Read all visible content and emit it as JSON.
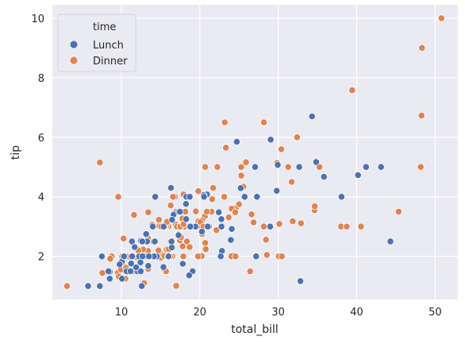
{
  "chart_data": {
    "type": "scatter",
    "title": "",
    "xlabel": "total_bill",
    "ylabel": "tip",
    "xlim": [
      1.2,
      52.9
    ],
    "ylim": [
      0.55,
      10.45
    ],
    "x_ticks": [
      10,
      20,
      30,
      40,
      50
    ],
    "y_ticks": [
      2,
      4,
      6,
      8,
      10
    ],
    "grid": true,
    "legend": {
      "title": "time",
      "position": "top-left"
    },
    "series": [
      {
        "name": "Lunch",
        "color": "#4c72b0",
        "points": [
          [
            27.2,
            4.0
          ],
          [
            22.76,
            3.0
          ],
          [
            17.29,
            2.71
          ],
          [
            19.44,
            3.0
          ],
          [
            16.66,
            3.4
          ],
          [
            10.07,
            1.83
          ],
          [
            32.68,
            5.0
          ],
          [
            15.98,
            2.03
          ],
          [
            34.83,
            5.17
          ],
          [
            13.03,
            2.0
          ],
          [
            18.28,
            4.0
          ],
          [
            24.71,
            5.85
          ],
          [
            21.16,
            3.0
          ],
          [
            28.97,
            3.0
          ],
          [
            22.49,
            3.5
          ],
          [
            5.75,
            1.0
          ],
          [
            16.32,
            4.3
          ],
          [
            22.75,
            3.25
          ],
          [
            40.17,
            4.73
          ],
          [
            27.28,
            4.0
          ],
          [
            12.03,
            1.5
          ],
          [
            21.01,
            3.0
          ],
          [
            12.46,
            1.5
          ],
          [
            11.35,
            2.5
          ],
          [
            15.38,
            3.0
          ],
          [
            44.3,
            2.5
          ],
          [
            22.42,
            3.48
          ],
          [
            20.92,
            4.08
          ],
          [
            15.36,
            1.64
          ],
          [
            20.49,
            4.06
          ],
          [
            25.21,
            4.29
          ],
          [
            18.24,
            3.76
          ],
          [
            14.31,
            4.0
          ],
          [
            14.0,
            3.0
          ],
          [
            7.25,
            1.0
          ],
          [
            38.07,
            4.0
          ],
          [
            23.95,
            2.55
          ],
          [
            25.71,
            4.0
          ],
          [
            17.31,
            3.5
          ],
          [
            29.93,
            5.07
          ],
          [
            10.65,
            1.5
          ],
          [
            12.43,
            1.8
          ],
          [
            24.08,
            2.92
          ],
          [
            11.69,
            2.31
          ],
          [
            13.42,
            1.68
          ],
          [
            14.26,
            2.5
          ],
          [
            15.95,
            2.0
          ],
          [
            12.48,
            2.52
          ],
          [
            29.8,
            4.2
          ],
          [
            8.52,
            1.48
          ],
          [
            14.52,
            2.0
          ],
          [
            11.38,
            2.0
          ],
          [
            22.82,
            2.18
          ],
          [
            19.08,
            1.5
          ],
          [
            20.27,
            2.83
          ],
          [
            11.17,
            1.5
          ],
          [
            12.26,
            2.0
          ],
          [
            18.26,
            3.25
          ],
          [
            8.51,
            1.25
          ],
          [
            10.33,
            2.0
          ],
          [
            14.15,
            2.0
          ],
          [
            16.0,
            2.0
          ],
          [
            13.16,
            2.75
          ],
          [
            17.47,
            3.5
          ],
          [
            34.3,
            6.7
          ],
          [
            41.19,
            5.0
          ],
          [
            27.05,
            5.0
          ],
          [
            16.43,
            2.3
          ],
          [
            8.35,
            1.5
          ],
          [
            18.64,
            1.36
          ],
          [
            11.87,
            1.63
          ],
          [
            9.78,
            1.73
          ],
          [
            7.51,
            2.0
          ],
          [
            13.0,
            2.0
          ],
          [
            16.4,
            2.5
          ],
          [
            20.53,
            4.0
          ],
          [
            16.47,
            3.23
          ],
          [
            10.07,
            1.25
          ],
          [
            12.6,
            1.0
          ],
          [
            32.83,
            1.17
          ],
          [
            35.83,
            4.67
          ],
          [
            29.03,
            5.92
          ],
          [
            27.18,
            2.0
          ],
          [
            22.67,
            2.0
          ],
          [
            17.82,
            1.75
          ],
          [
            18.78,
            3.0
          ],
          [
            12.74,
            2.01
          ],
          [
            13.0,
            2.0
          ],
          [
            10.34,
            2.0
          ],
          [
            43.11,
            5.0
          ],
          [
            13.51,
            2.0
          ],
          [
            18.71,
            4.0
          ],
          [
            13.27,
            2.5
          ],
          [
            12.69,
            2.0
          ],
          [
            11.24,
            1.76
          ],
          [
            12.66,
            2.5
          ]
        ]
      },
      {
        "name": "Dinner",
        "color": "#dd8452",
        "points": [
          [
            16.99,
            1.01
          ],
          [
            10.34,
            1.66
          ],
          [
            21.01,
            3.5
          ],
          [
            23.68,
            3.31
          ],
          [
            24.59,
            3.61
          ],
          [
            25.29,
            4.71
          ],
          [
            8.77,
            2.0
          ],
          [
            26.88,
            3.12
          ],
          [
            15.04,
            1.96
          ],
          [
            14.78,
            3.23
          ],
          [
            10.27,
            1.71
          ],
          [
            35.26,
            5.0
          ],
          [
            15.42,
            1.57
          ],
          [
            18.43,
            3.0
          ],
          [
            14.83,
            3.02
          ],
          [
            21.58,
            3.92
          ],
          [
            10.33,
            1.67
          ],
          [
            16.29,
            3.71
          ],
          [
            16.97,
            3.5
          ],
          [
            20.65,
            3.35
          ],
          [
            17.92,
            4.08
          ],
          [
            20.29,
            2.75
          ],
          [
            15.77,
            2.23
          ],
          [
            39.42,
            7.58
          ],
          [
            19.82,
            3.18
          ],
          [
            17.81,
            2.34
          ],
          [
            13.37,
            2.0
          ],
          [
            12.69,
            2.0
          ],
          [
            21.7,
            4.3
          ],
          [
            19.65,
            3.0
          ],
          [
            9.55,
            1.45
          ],
          [
            18.35,
            2.5
          ],
          [
            15.06,
            3.0
          ],
          [
            20.69,
            2.45
          ],
          [
            17.78,
            3.27
          ],
          [
            24.06,
            3.6
          ],
          [
            16.31,
            2.0
          ],
          [
            16.93,
            3.07
          ],
          [
            18.69,
            2.31
          ],
          [
            31.27,
            5.0
          ],
          [
            16.04,
            2.24
          ],
          [
            17.46,
            2.54
          ],
          [
            13.94,
            3.06
          ],
          [
            9.68,
            1.32
          ],
          [
            30.4,
            5.6
          ],
          [
            18.29,
            3.0
          ],
          [
            22.23,
            5.0
          ],
          [
            32.4,
            6.0
          ],
          [
            28.55,
            2.05
          ],
          [
            18.04,
            3.0
          ],
          [
            12.54,
            2.5
          ],
          [
            10.29,
            2.6
          ],
          [
            34.81,
            5.2
          ],
          [
            9.94,
            1.56
          ],
          [
            25.56,
            4.34
          ],
          [
            19.49,
            3.51
          ],
          [
            38.01,
            3.0
          ],
          [
            26.41,
            1.5
          ],
          [
            11.24,
            1.76
          ],
          [
            48.27,
            6.73
          ],
          [
            20.29,
            3.21
          ],
          [
            13.81,
            2.0
          ],
          [
            11.02,
            1.98
          ],
          [
            18.29,
            3.76
          ],
          [
            17.59,
            2.64
          ],
          [
            20.08,
            3.15
          ],
          [
            16.45,
            2.47
          ],
          [
            3.07,
            1.0
          ],
          [
            20.23,
            2.01
          ],
          [
            15.01,
            2.09
          ],
          [
            12.02,
            1.97
          ],
          [
            17.07,
            3.0
          ],
          [
            26.86,
            3.14
          ],
          [
            25.28,
            5.0
          ],
          [
            14.73,
            2.2
          ],
          [
            10.51,
            1.25
          ],
          [
            17.92,
            3.08
          ],
          [
            38.73,
            3.0
          ],
          [
            24.27,
            2.03
          ],
          [
            12.76,
            2.23
          ],
          [
            30.06,
            2.0
          ],
          [
            25.89,
            5.16
          ],
          [
            48.33,
            9.0
          ],
          [
            13.39,
            2.18
          ],
          [
            16.21,
            2.0
          ],
          [
            17.51,
            3.0
          ],
          [
            24.52,
            3.48
          ],
          [
            20.76,
            2.24
          ],
          [
            31.71,
            4.5
          ],
          [
            10.59,
            1.61
          ],
          [
            10.63,
            2.0
          ],
          [
            50.81,
            10.0
          ],
          [
            15.81,
            3.16
          ],
          [
            7.25,
            5.15
          ],
          [
            31.85,
            3.18
          ],
          [
            16.82,
            4.0
          ],
          [
            32.9,
            3.11
          ],
          [
            17.89,
            2.0
          ],
          [
            14.48,
            2.0
          ],
          [
            9.6,
            4.0
          ],
          [
            34.63,
            3.55
          ],
          [
            34.65,
            3.68
          ],
          [
            23.33,
            5.65
          ],
          [
            45.35,
            3.5
          ],
          [
            23.17,
            6.5
          ],
          [
            40.55,
            3.0
          ],
          [
            20.69,
            5.0
          ],
          [
            20.9,
            3.5
          ],
          [
            30.46,
            2.0
          ],
          [
            18.15,
            3.5
          ],
          [
            23.1,
            4.0
          ],
          [
            15.69,
            1.5
          ],
          [
            19.81,
            4.19
          ],
          [
            28.44,
            2.56
          ],
          [
            15.48,
            2.02
          ],
          [
            16.58,
            4.0
          ],
          [
            7.56,
            1.44
          ],
          [
            10.34,
            2.0
          ],
          [
            43.11,
            5.0
          ],
          [
            13.0,
            2.0
          ],
          [
            13.51,
            2.0
          ],
          [
            18.71,
            4.0
          ],
          [
            12.74,
            2.01
          ],
          [
            13.0,
            2.0
          ],
          [
            16.4,
            2.5
          ],
          [
            20.53,
            4.0
          ],
          [
            16.47,
            3.23
          ],
          [
            26.59,
            3.41
          ],
          [
            38.73,
            3.0
          ],
          [
            24.27,
            2.03
          ],
          [
            12.76,
            2.23
          ],
          [
            30.06,
            2.0
          ],
          [
            25.89,
            5.16
          ],
          [
            48.33,
            9.0
          ],
          [
            13.27,
            2.5
          ],
          [
            28.17,
            6.5
          ],
          [
            12.9,
            1.1
          ],
          [
            28.15,
            3.0
          ],
          [
            11.59,
            1.5
          ],
          [
            7.74,
            1.44
          ],
          [
            30.14,
            3.09
          ],
          [
            12.16,
            2.2
          ],
          [
            13.42,
            3.48
          ],
          [
            8.58,
            1.92
          ],
          [
            15.98,
            3.0
          ],
          [
            13.42,
            1.58
          ],
          [
            16.27,
            2.5
          ],
          [
            10.09,
            2.0
          ],
          [
            20.45,
            3.0
          ],
          [
            13.28,
            2.72
          ],
          [
            22.12,
            2.88
          ],
          [
            24.01,
            2.0
          ],
          [
            15.69,
            3.0
          ],
          [
            11.61,
            3.39
          ],
          [
            10.77,
            1.47
          ],
          [
            15.53,
            3.0
          ],
          [
            10.07,
            1.25
          ],
          [
            12.6,
            1.0
          ],
          [
            32.83,
            1.17
          ],
          [
            35.83,
            4.67
          ],
          [
            29.03,
            5.92
          ],
          [
            27.18,
            2.0
          ],
          [
            22.67,
            2.0
          ],
          [
            17.82,
            1.75
          ],
          [
            18.78,
            3.0
          ],
          [
            14.07,
            2.5
          ],
          [
            13.13,
            2.0
          ],
          [
            17.26,
            2.74
          ],
          [
            24.55,
            2.0
          ],
          [
            19.77,
            2.0
          ],
          [
            29.85,
            5.14
          ],
          [
            48.17,
            5.0
          ],
          [
            25.0,
            3.75
          ],
          [
            13.39,
            2.61
          ],
          [
            16.49,
            2.0
          ],
          [
            21.5,
            3.5
          ],
          [
            12.66,
            2.5
          ],
          [
            16.21,
            2.0
          ],
          [
            13.81,
            2.0
          ],
          [
            17.51,
            3.0
          ],
          [
            24.52,
            3.48
          ],
          [
            20.76,
            2.24
          ],
          [
            31.71,
            4.5
          ],
          [
            10.59,
            1.61
          ],
          [
            10.63,
            2.0
          ],
          [
            50.81,
            10.0
          ],
          [
            15.81,
            3.16
          ],
          [
            7.25,
            5.15
          ],
          [
            31.85,
            3.18
          ],
          [
            16.82,
            4.0
          ],
          [
            32.9,
            3.11
          ],
          [
            17.89,
            2.0
          ],
          [
            14.48,
            2.0
          ],
          [
            9.6,
            4.0
          ],
          [
            34.63,
            3.55
          ],
          [
            34.65,
            3.68
          ],
          [
            23.33,
            5.65
          ],
          [
            45.35,
            3.5
          ],
          [
            23.17,
            6.5
          ],
          [
            40.55,
            3.0
          ],
          [
            20.69,
            5.0
          ],
          [
            20.9,
            3.5
          ],
          [
            30.46,
            2.0
          ],
          [
            18.15,
            3.5
          ],
          [
            23.1,
            4.0
          ],
          [
            15.69,
            1.5
          ],
          [
            19.81,
            4.19
          ],
          [
            28.44,
            2.56
          ],
          [
            15.48,
            2.02
          ],
          [
            16.58,
            4.0
          ],
          [
            7.56,
            1.44
          ],
          [
            10.34,
            2.0
          ],
          [
            26.86,
            3.14
          ],
          [
            25.28,
            5.0
          ],
          [
            14.73,
            2.2
          ],
          [
            10.51,
            1.25
          ],
          [
            17.92,
            3.08
          ]
        ]
      }
    ]
  }
}
